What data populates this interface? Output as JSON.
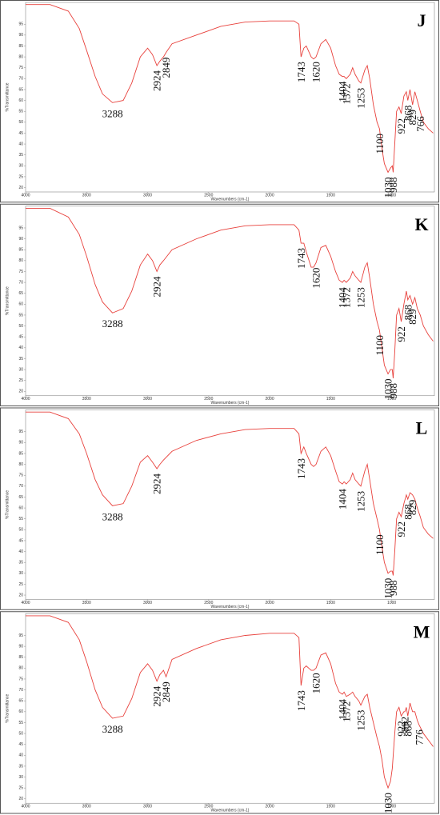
{
  "chart_data": [
    {
      "type": "line",
      "title": "J",
      "xlabel": "Wavenumbers (cm-1)",
      "ylabel": "%Transmittance",
      "color": "#e8413c",
      "xlim": [
        4000,
        650
      ],
      "ylim": [
        18,
        105
      ],
      "xticks": [
        4000,
        3500,
        3000,
        2500,
        2000,
        1500,
        1000
      ],
      "yticks": [
        20,
        25,
        30,
        35,
        40,
        45,
        50,
        55,
        60,
        65,
        70,
        75,
        80,
        85,
        90,
        95
      ],
      "x": [
        4000,
        3800,
        3650,
        3560,
        3500,
        3430,
        3370,
        3288,
        3200,
        3130,
        3060,
        3000,
        2960,
        2924,
        2900,
        2870,
        2849,
        2800,
        2600,
        2400,
        2200,
        2000,
        1800,
        1760,
        1743,
        1720,
        1700,
        1660,
        1640,
        1620,
        1580,
        1540,
        1500,
        1460,
        1430,
        1404,
        1390,
        1372,
        1340,
        1320,
        1300,
        1270,
        1253,
        1220,
        1200,
        1180,
        1150,
        1120,
        1100,
        1080,
        1060,
        1030,
        1010,
        995,
        988,
        975,
        960,
        940,
        922,
        900,
        880,
        868,
        850,
        829,
        810,
        790,
        766,
        740,
        700,
        660
      ],
      "values": [
        104,
        104,
        101,
        93,
        83,
        71,
        63,
        59,
        60,
        68,
        80,
        84,
        81,
        76,
        78,
        80,
        82,
        86,
        90,
        94,
        96,
        96.5,
        96.5,
        95,
        80,
        84,
        85,
        80,
        79,
        80,
        86,
        88,
        84,
        76,
        72,
        71,
        71,
        70,
        72,
        75,
        72,
        69,
        68,
        74,
        76,
        70,
        58,
        50,
        47,
        38,
        31,
        27,
        29,
        30,
        27,
        40,
        55,
        57,
        54,
        62,
        64,
        60,
        65,
        58,
        64,
        60,
        55,
        50,
        47,
        45
      ],
      "peaks": [
        3288,
        2924,
        2849,
        1743,
        1620,
        1404,
        1372,
        1253,
        1100,
        1030,
        988,
        922,
        868,
        829,
        766
      ]
    },
    {
      "type": "line",
      "title": "K",
      "xlabel": "Wavenumbers (cm-1)",
      "ylabel": "%Transmittance",
      "color": "#e8413c",
      "xlim": [
        4000,
        650
      ],
      "ylim": [
        18,
        105
      ],
      "xticks": [
        4000,
        3500,
        3000,
        2500,
        2000,
        1500,
        1000
      ],
      "yticks": [
        20,
        25,
        30,
        35,
        40,
        45,
        50,
        55,
        60,
        65,
        70,
        75,
        80,
        85,
        90,
        95
      ],
      "x": [
        4000,
        3800,
        3650,
        3560,
        3500,
        3430,
        3370,
        3288,
        3200,
        3130,
        3060,
        3000,
        2960,
        2924,
        2900,
        2870,
        2800,
        2600,
        2400,
        2200,
        2000,
        1800,
        1760,
        1743,
        1720,
        1700,
        1660,
        1640,
        1620,
        1580,
        1540,
        1500,
        1460,
        1430,
        1404,
        1390,
        1372,
        1340,
        1320,
        1300,
        1270,
        1253,
        1220,
        1200,
        1180,
        1150,
        1120,
        1100,
        1080,
        1060,
        1030,
        1010,
        995,
        988,
        975,
        960,
        940,
        922,
        900,
        880,
        868,
        850,
        829,
        810,
        790,
        766,
        740,
        700,
        660
      ],
      "values": [
        104,
        104,
        100,
        92,
        82,
        69,
        61,
        56,
        58,
        66,
        78,
        83,
        80,
        75,
        78,
        80,
        85,
        90,
        94,
        96,
        96.5,
        96.5,
        94,
        88,
        88,
        84,
        77,
        77,
        79,
        86,
        87,
        82,
        75,
        71,
        70,
        71,
        70,
        72,
        75,
        73,
        71,
        70,
        77,
        79,
        72,
        60,
        52,
        48,
        40,
        32,
        28,
        30,
        30,
        26,
        38,
        55,
        58,
        52,
        60,
        66,
        62,
        64,
        60,
        63,
        58,
        55,
        50,
        46,
        43
      ],
      "peaks": [
        3288,
        2924,
        1743,
        1620,
        1404,
        1372,
        1253,
        1100,
        1030,
        988,
        922,
        868,
        829
      ]
    },
    {
      "type": "line",
      "title": "L",
      "xlabel": "Wavenumbers (cm-1)",
      "ylabel": "%Transmittance",
      "color": "#e8413c",
      "xlim": [
        4000,
        650
      ],
      "ylim": [
        18,
        105
      ],
      "xticks": [
        4000,
        3500,
        3000,
        2500,
        2000,
        1500,
        1000
      ],
      "yticks": [
        20,
        25,
        30,
        35,
        40,
        45,
        50,
        55,
        60,
        65,
        70,
        75,
        80,
        85,
        90,
        95
      ],
      "x": [
        4000,
        3800,
        3650,
        3560,
        3500,
        3430,
        3370,
        3288,
        3200,
        3130,
        3060,
        3000,
        2960,
        2924,
        2900,
        2870,
        2800,
        2600,
        2400,
        2200,
        2000,
        1800,
        1760,
        1743,
        1720,
        1700,
        1660,
        1640,
        1620,
        1580,
        1540,
        1500,
        1460,
        1430,
        1404,
        1390,
        1372,
        1340,
        1320,
        1300,
        1270,
        1253,
        1220,
        1200,
        1180,
        1150,
        1120,
        1100,
        1080,
        1060,
        1030,
        1010,
        995,
        988,
        975,
        960,
        940,
        922,
        900,
        880,
        868,
        850,
        829,
        810,
        790,
        766,
        740,
        700,
        660
      ],
      "values": [
        104,
        104,
        101,
        94,
        85,
        73,
        66,
        61,
        62,
        70,
        81,
        84,
        81,
        78,
        80,
        82,
        86,
        91,
        94,
        96,
        96.5,
        96.5,
        94,
        85,
        88,
        85,
        80,
        79,
        80,
        86,
        88,
        84,
        77,
        72,
        71,
        72,
        71,
        73,
        76,
        73,
        71,
        70,
        77,
        80,
        73,
        62,
        55,
        50,
        42,
        35,
        30,
        31,
        31,
        29,
        40,
        55,
        58,
        56,
        62,
        66,
        64,
        67,
        66,
        64,
        60,
        56,
        51,
        48,
        46
      ],
      "peaks": [
        3288,
        2924,
        1743,
        1404,
        1253,
        1100,
        1030,
        988,
        922,
        868,
        829
      ]
    },
    {
      "type": "line",
      "title": "M",
      "xlabel": "Wavenumbers (cm-1)",
      "ylabel": "%Transmittance",
      "color": "#e8413c",
      "xlim": [
        4000,
        650
      ],
      "ylim": [
        18,
        105
      ],
      "xticks": [
        4000,
        3500,
        3000,
        2500,
        2000,
        1500,
        1000
      ],
      "yticks": [
        20,
        25,
        30,
        35,
        40,
        45,
        50,
        55,
        60,
        65,
        70,
        75,
        80,
        85,
        90,
        95
      ],
      "x": [
        4000,
        3800,
        3650,
        3560,
        3500,
        3430,
        3370,
        3288,
        3200,
        3130,
        3060,
        3000,
        2960,
        2924,
        2900,
        2870,
        2849,
        2800,
        2600,
        2400,
        2200,
        2000,
        1800,
        1760,
        1743,
        1720,
        1700,
        1660,
        1640,
        1620,
        1580,
        1540,
        1500,
        1460,
        1430,
        1404,
        1390,
        1372,
        1340,
        1320,
        1300,
        1270,
        1253,
        1220,
        1200,
        1180,
        1150,
        1120,
        1100,
        1080,
        1060,
        1030,
        1010,
        995,
        975,
        960,
        940,
        922,
        900,
        892,
        880,
        868,
        850,
        829,
        810,
        790,
        776,
        740,
        700,
        660
      ],
      "values": [
        104,
        104,
        101,
        93,
        83,
        70,
        62,
        57,
        58,
        66,
        78,
        82,
        79,
        74,
        77,
        79,
        76,
        84,
        89,
        93,
        95,
        96,
        96,
        94,
        72,
        80,
        81,
        79,
        79,
        80,
        86,
        87,
        82,
        73,
        69,
        68,
        69,
        67,
        68,
        69,
        67,
        65,
        63,
        67,
        68,
        62,
        55,
        48,
        44,
        38,
        30,
        25,
        28,
        34,
        50,
        60,
        62,
        58,
        60,
        60,
        62,
        58,
        64,
        60,
        60,
        56,
        54,
        50,
        47,
        44
      ],
      "peaks": [
        3288,
        2924,
        2849,
        1743,
        1620,
        1404,
        1372,
        1253,
        1030,
        922,
        892,
        868,
        776
      ]
    }
  ]
}
